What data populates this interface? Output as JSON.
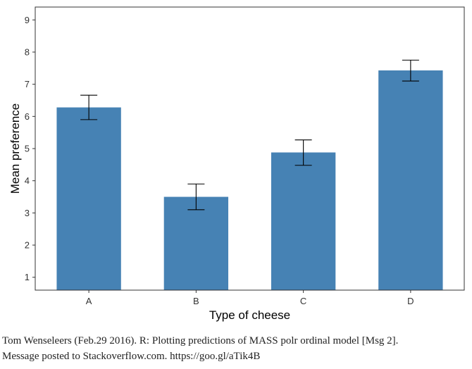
{
  "chart_data": {
    "type": "bar",
    "xlabel": "Type of cheese",
    "ylabel": "Mean preference",
    "categories": [
      "A",
      "B",
      "C",
      "D"
    ],
    "values": [
      6.28,
      3.5,
      4.88,
      7.43
    ],
    "error_lower": [
      5.9,
      3.1,
      4.48,
      7.1
    ],
    "error_upper": [
      6.66,
      3.9,
      5.27,
      7.75
    ],
    "ylim": [
      0.6,
      9.4
    ],
    "yticks": [
      1,
      2,
      3,
      4,
      5,
      6,
      7,
      8,
      9
    ],
    "grid": false,
    "legend": "none",
    "colors": {
      "bar": "#4682B4",
      "error_bar": "#000000",
      "frame": "#333333"
    }
  },
  "caption": {
    "line1": "Tom Wenseleers (Feb.29 2016). R: Plotting predictions of MASS polr ordinal model [Msg 2].",
    "line2": "Message posted to Stackoverflow.com. https://goo.gl/aTik4B"
  }
}
